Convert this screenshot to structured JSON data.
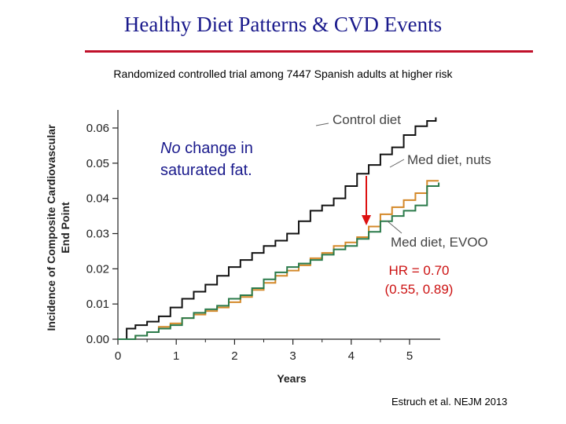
{
  "slide": {
    "title": "Healthy Diet Patterns & CVD Events",
    "subtitle": "Randomized controlled trial among 7447 Spanish adults at higher risk",
    "citation": "Estruch et al. NEJM 2013"
  },
  "annotations": {
    "fat_italic": "No",
    "fat_line1_rest": " change in",
    "fat_line2": "saturated fat.",
    "hr_line1": "HR = 0.70",
    "hr_line2": "(0.55, 0.89)"
  },
  "colors": {
    "control": "#111111",
    "nuts": "#d4892a",
    "evoo": "#2a7a4a",
    "arrow": "#dd1111",
    "hr_text": "#cc1111",
    "title": "#1a1a8c",
    "rule": "#c0102a"
  },
  "chart_data": {
    "type": "line",
    "title": "",
    "xlabel": "Years",
    "ylabel_line1": "Incidence of Composite Cardiovascular",
    "ylabel_line2": "End Point",
    "xlim": [
      0,
      5.5
    ],
    "ylim": [
      0,
      0.065
    ],
    "x_ticks": [
      0,
      1,
      2,
      3,
      4,
      5
    ],
    "y_ticks": [
      0,
      0.01,
      0.02,
      0.03,
      0.04,
      0.05,
      0.06
    ],
    "y_tick_labels": [
      "0.00",
      "0.01",
      "0.02",
      "0.03",
      "0.04",
      "0.05",
      "0.06"
    ],
    "grid": false,
    "series": [
      {
        "name": "Control diet",
        "key": "control",
        "x": [
          0,
          0.15,
          0.3,
          0.5,
          0.7,
          0.9,
          1.1,
          1.3,
          1.5,
          1.7,
          1.9,
          2.1,
          2.3,
          2.5,
          2.7,
          2.9,
          3.1,
          3.3,
          3.5,
          3.7,
          3.9,
          4.1,
          4.3,
          4.5,
          4.7,
          4.9,
          5.1,
          5.3,
          5.45
        ],
        "y": [
          0,
          0.003,
          0.004,
          0.005,
          0.0065,
          0.009,
          0.0115,
          0.0135,
          0.0155,
          0.018,
          0.0205,
          0.0225,
          0.0245,
          0.0265,
          0.028,
          0.03,
          0.0335,
          0.0365,
          0.038,
          0.04,
          0.0435,
          0.047,
          0.0495,
          0.0525,
          0.0545,
          0.058,
          0.0605,
          0.062,
          0.063
        ]
      },
      {
        "name": "Med diet, nuts",
        "key": "nuts",
        "x": [
          0,
          0.3,
          0.5,
          0.7,
          0.9,
          1.1,
          1.3,
          1.5,
          1.7,
          1.9,
          2.1,
          2.3,
          2.5,
          2.7,
          2.9,
          3.1,
          3.3,
          3.5,
          3.7,
          3.9,
          4.1,
          4.3,
          4.5,
          4.7,
          4.9,
          5.1,
          5.3,
          5.5
        ],
        "y": [
          0,
          0.001,
          0.002,
          0.0035,
          0.0045,
          0.006,
          0.007,
          0.008,
          0.009,
          0.0105,
          0.012,
          0.014,
          0.016,
          0.018,
          0.0195,
          0.021,
          0.023,
          0.0245,
          0.0265,
          0.0275,
          0.029,
          0.032,
          0.0355,
          0.0375,
          0.0395,
          0.0415,
          0.045,
          0.045
        ]
      },
      {
        "name": "Med diet, EVOO",
        "key": "evoo",
        "x": [
          0,
          0.3,
          0.5,
          0.7,
          0.9,
          1.1,
          1.3,
          1.5,
          1.7,
          1.9,
          2.1,
          2.3,
          2.5,
          2.7,
          2.9,
          3.1,
          3.3,
          3.5,
          3.7,
          3.9,
          4.1,
          4.3,
          4.5,
          4.7,
          4.9,
          5.1,
          5.3,
          5.5
        ],
        "y": [
          0,
          0.001,
          0.002,
          0.003,
          0.004,
          0.006,
          0.0075,
          0.0085,
          0.0095,
          0.0115,
          0.0125,
          0.0145,
          0.017,
          0.019,
          0.0205,
          0.0215,
          0.0225,
          0.024,
          0.0255,
          0.0265,
          0.0285,
          0.0305,
          0.0335,
          0.035,
          0.0365,
          0.038,
          0.0435,
          0.0445
        ]
      }
    ]
  }
}
